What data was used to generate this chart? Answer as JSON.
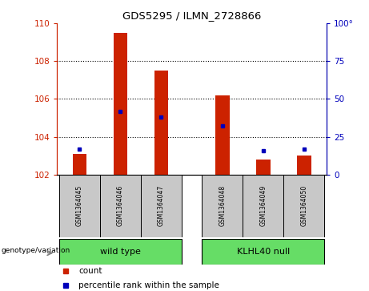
{
  "title": "GDS5295 / ILMN_2728866",
  "samples": [
    "GSM1364045",
    "GSM1364046",
    "GSM1364047",
    "GSM1364048",
    "GSM1364049",
    "GSM1364050"
  ],
  "count_values": [
    103.1,
    109.5,
    107.5,
    106.2,
    102.8,
    103.0
  ],
  "count_baseline": 102.0,
  "percentile_values": [
    17,
    42,
    38,
    32,
    16,
    17
  ],
  "ylim_left": [
    102,
    110
  ],
  "ylim_right": [
    0,
    100
  ],
  "yticks_left": [
    102,
    104,
    106,
    108,
    110
  ],
  "yticks_right": [
    0,
    25,
    50,
    75,
    100
  ],
  "bar_color": "#CC2200",
  "dot_color": "#0000BB",
  "cell_bg": "#C8C8C8",
  "left_axis_color": "#CC2200",
  "right_axis_color": "#0000BB",
  "group1_name": "wild type",
  "group2_name": "KLHL40 null",
  "group_color": "#66DD66",
  "group_label": "genotype/variation",
  "legend_count": "count",
  "legend_percentile": "percentile rank within the sample",
  "grid_ticks": [
    104,
    106,
    108
  ],
  "x_positions": [
    0,
    1,
    2,
    3.5,
    4.5,
    5.5
  ],
  "xlim": [
    -0.55,
    6.05
  ],
  "group1_x_center": 1.0,
  "group2_x_center": 4.5,
  "bar_width": 0.35
}
